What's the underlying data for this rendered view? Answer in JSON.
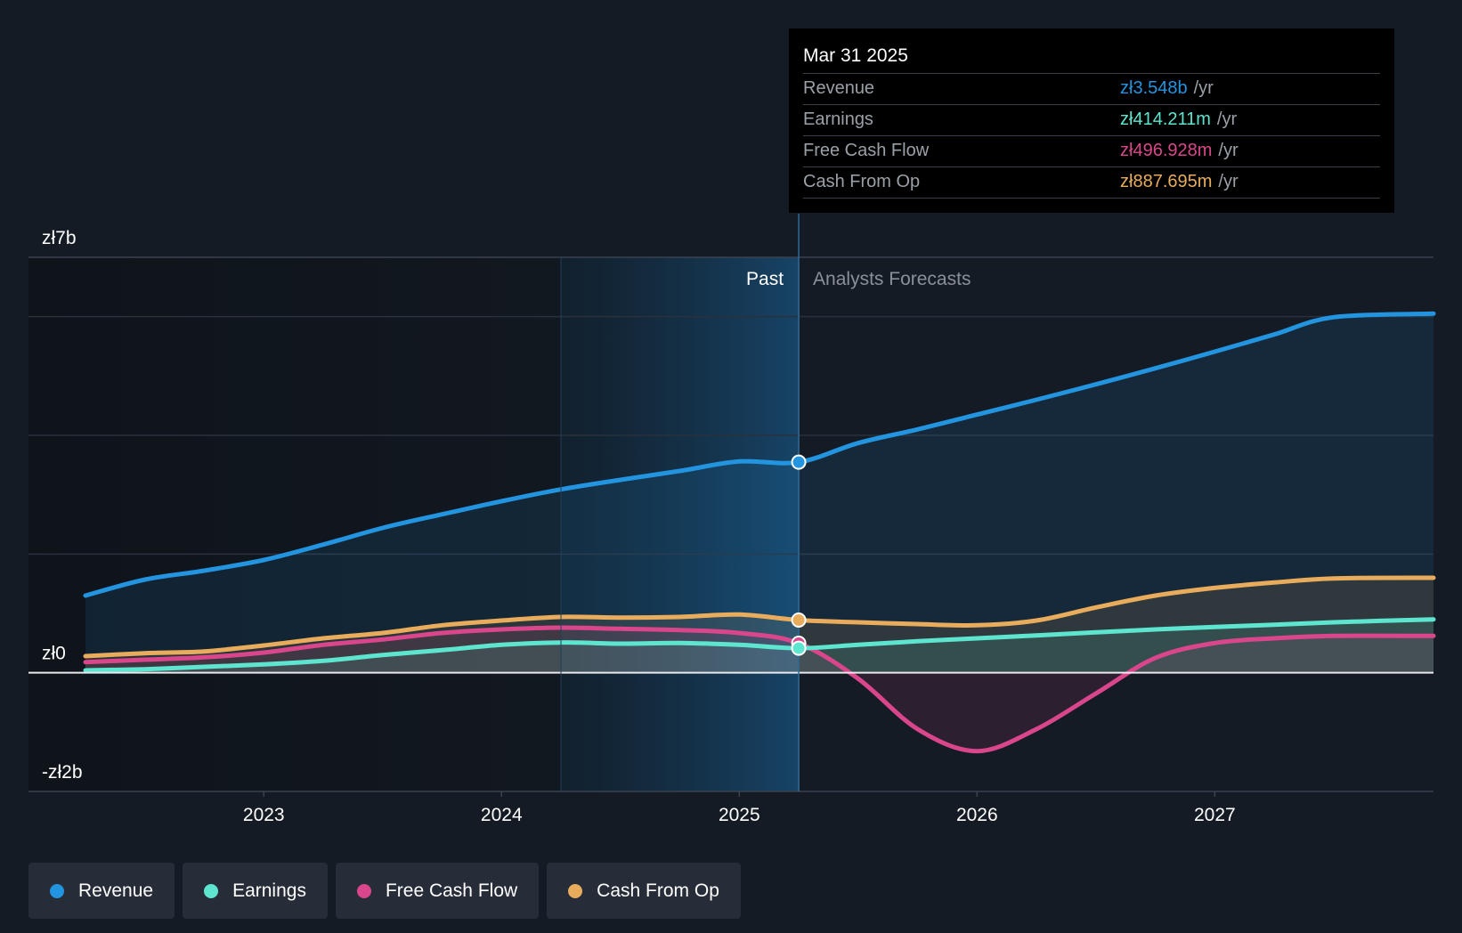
{
  "tooltip": {
    "date": "Mar 31 2025",
    "rows": [
      {
        "label": "Revenue",
        "value": "zł3.548b",
        "unit": "/yr",
        "color": "#2394df"
      },
      {
        "label": "Earnings",
        "value": "zł414.211m",
        "unit": "/yr",
        "color": "#5ee5cf"
      },
      {
        "label": "Free Cash Flow",
        "value": "zł496.928m",
        "unit": "/yr",
        "color": "#d9468b"
      },
      {
        "label": "Cash From Op",
        "value": "zł887.695m",
        "unit": "/yr",
        "color": "#e8ac5c"
      }
    ]
  },
  "legend": [
    {
      "label": "Revenue",
      "color": "#2394df"
    },
    {
      "label": "Earnings",
      "color": "#5ee5cf"
    },
    {
      "label": "Free Cash Flow",
      "color": "#d9468b"
    },
    {
      "label": "Cash From Op",
      "color": "#e8ac5c"
    }
  ],
  "chart_data": {
    "type": "area",
    "ylim": [
      -2,
      7
    ],
    "y_tick_labels": [
      {
        "value": 7,
        "label": "zł7b"
      },
      {
        "value": 0,
        "label": "zł0"
      },
      {
        "value": -2,
        "label": "-zł2b"
      }
    ],
    "y_gridlines": [
      7,
      6,
      4,
      2,
      0,
      -2
    ],
    "x_range": [
      2022.25,
      2027.92
    ],
    "x_ticks": [
      {
        "value": 2023,
        "label": "2023"
      },
      {
        "value": 2024,
        "label": "2024"
      },
      {
        "value": 2025,
        "label": "2025"
      },
      {
        "value": 2026,
        "label": "2026"
      },
      {
        "value": 2027,
        "label": "2027"
      }
    ],
    "past_label": "Past",
    "forecast_label": "Analysts Forecasts",
    "past_highlight_start": 2024.25,
    "divider_x": 2025.25,
    "marker_x": 2025.25,
    "series": [
      {
        "name": "Revenue",
        "color": "#2394df",
        "x": [
          2022.25,
          2022.5,
          2022.75,
          2023.0,
          2023.25,
          2023.5,
          2023.75,
          2024.0,
          2024.25,
          2024.5,
          2024.75,
          2025.0,
          2025.25,
          2025.5,
          2025.75,
          2026.0,
          2026.25,
          2026.5,
          2026.75,
          2027.0,
          2027.25,
          2027.5,
          2027.92
        ],
        "values": [
          1.3,
          1.57,
          1.72,
          1.9,
          2.16,
          2.44,
          2.67,
          2.89,
          3.09,
          3.25,
          3.4,
          3.56,
          3.548,
          3.87,
          4.1,
          4.35,
          4.6,
          4.86,
          5.13,
          5.41,
          5.7,
          5.99,
          6.05
        ]
      },
      {
        "name": "Cash From Op",
        "color": "#e8ac5c",
        "x": [
          2022.25,
          2022.5,
          2022.75,
          2023.0,
          2023.25,
          2023.5,
          2023.75,
          2024.0,
          2024.25,
          2024.5,
          2024.75,
          2025.0,
          2025.25,
          2025.5,
          2025.75,
          2026.0,
          2026.25,
          2026.5,
          2026.75,
          2027.0,
          2027.25,
          2027.5,
          2027.92
        ],
        "values": [
          0.28,
          0.33,
          0.36,
          0.46,
          0.58,
          0.67,
          0.8,
          0.88,
          0.94,
          0.93,
          0.94,
          0.98,
          0.888,
          0.85,
          0.82,
          0.8,
          0.88,
          1.1,
          1.3,
          1.43,
          1.52,
          1.59,
          1.6
        ]
      },
      {
        "name": "Free Cash Flow",
        "color": "#d9468b",
        "x": [
          2022.25,
          2022.5,
          2022.75,
          2023.0,
          2023.25,
          2023.5,
          2023.75,
          2024.0,
          2024.25,
          2024.5,
          2024.75,
          2025.0,
          2025.25,
          2025.5,
          2025.75,
          2026.0,
          2026.25,
          2026.5,
          2026.75,
          2027.0,
          2027.25,
          2027.5,
          2027.92
        ],
        "values": [
          0.18,
          0.22,
          0.26,
          0.34,
          0.47,
          0.56,
          0.67,
          0.73,
          0.76,
          0.74,
          0.72,
          0.67,
          0.497,
          -0.1,
          -0.95,
          -1.32,
          -0.95,
          -0.35,
          0.25,
          0.5,
          0.58,
          0.62,
          0.62
        ]
      },
      {
        "name": "Earnings",
        "color": "#5ee5cf",
        "x": [
          2022.25,
          2022.5,
          2022.75,
          2023.0,
          2023.25,
          2023.5,
          2023.75,
          2024.0,
          2024.25,
          2024.5,
          2024.75,
          2025.0,
          2025.25,
          2025.5,
          2025.75,
          2026.0,
          2026.25,
          2026.5,
          2026.75,
          2027.0,
          2027.25,
          2027.5,
          2027.92
        ],
        "values": [
          0.04,
          0.06,
          0.1,
          0.14,
          0.2,
          0.3,
          0.38,
          0.47,
          0.51,
          0.49,
          0.5,
          0.47,
          0.414,
          0.47,
          0.53,
          0.58,
          0.63,
          0.68,
          0.73,
          0.77,
          0.81,
          0.85,
          0.9
        ]
      }
    ]
  }
}
